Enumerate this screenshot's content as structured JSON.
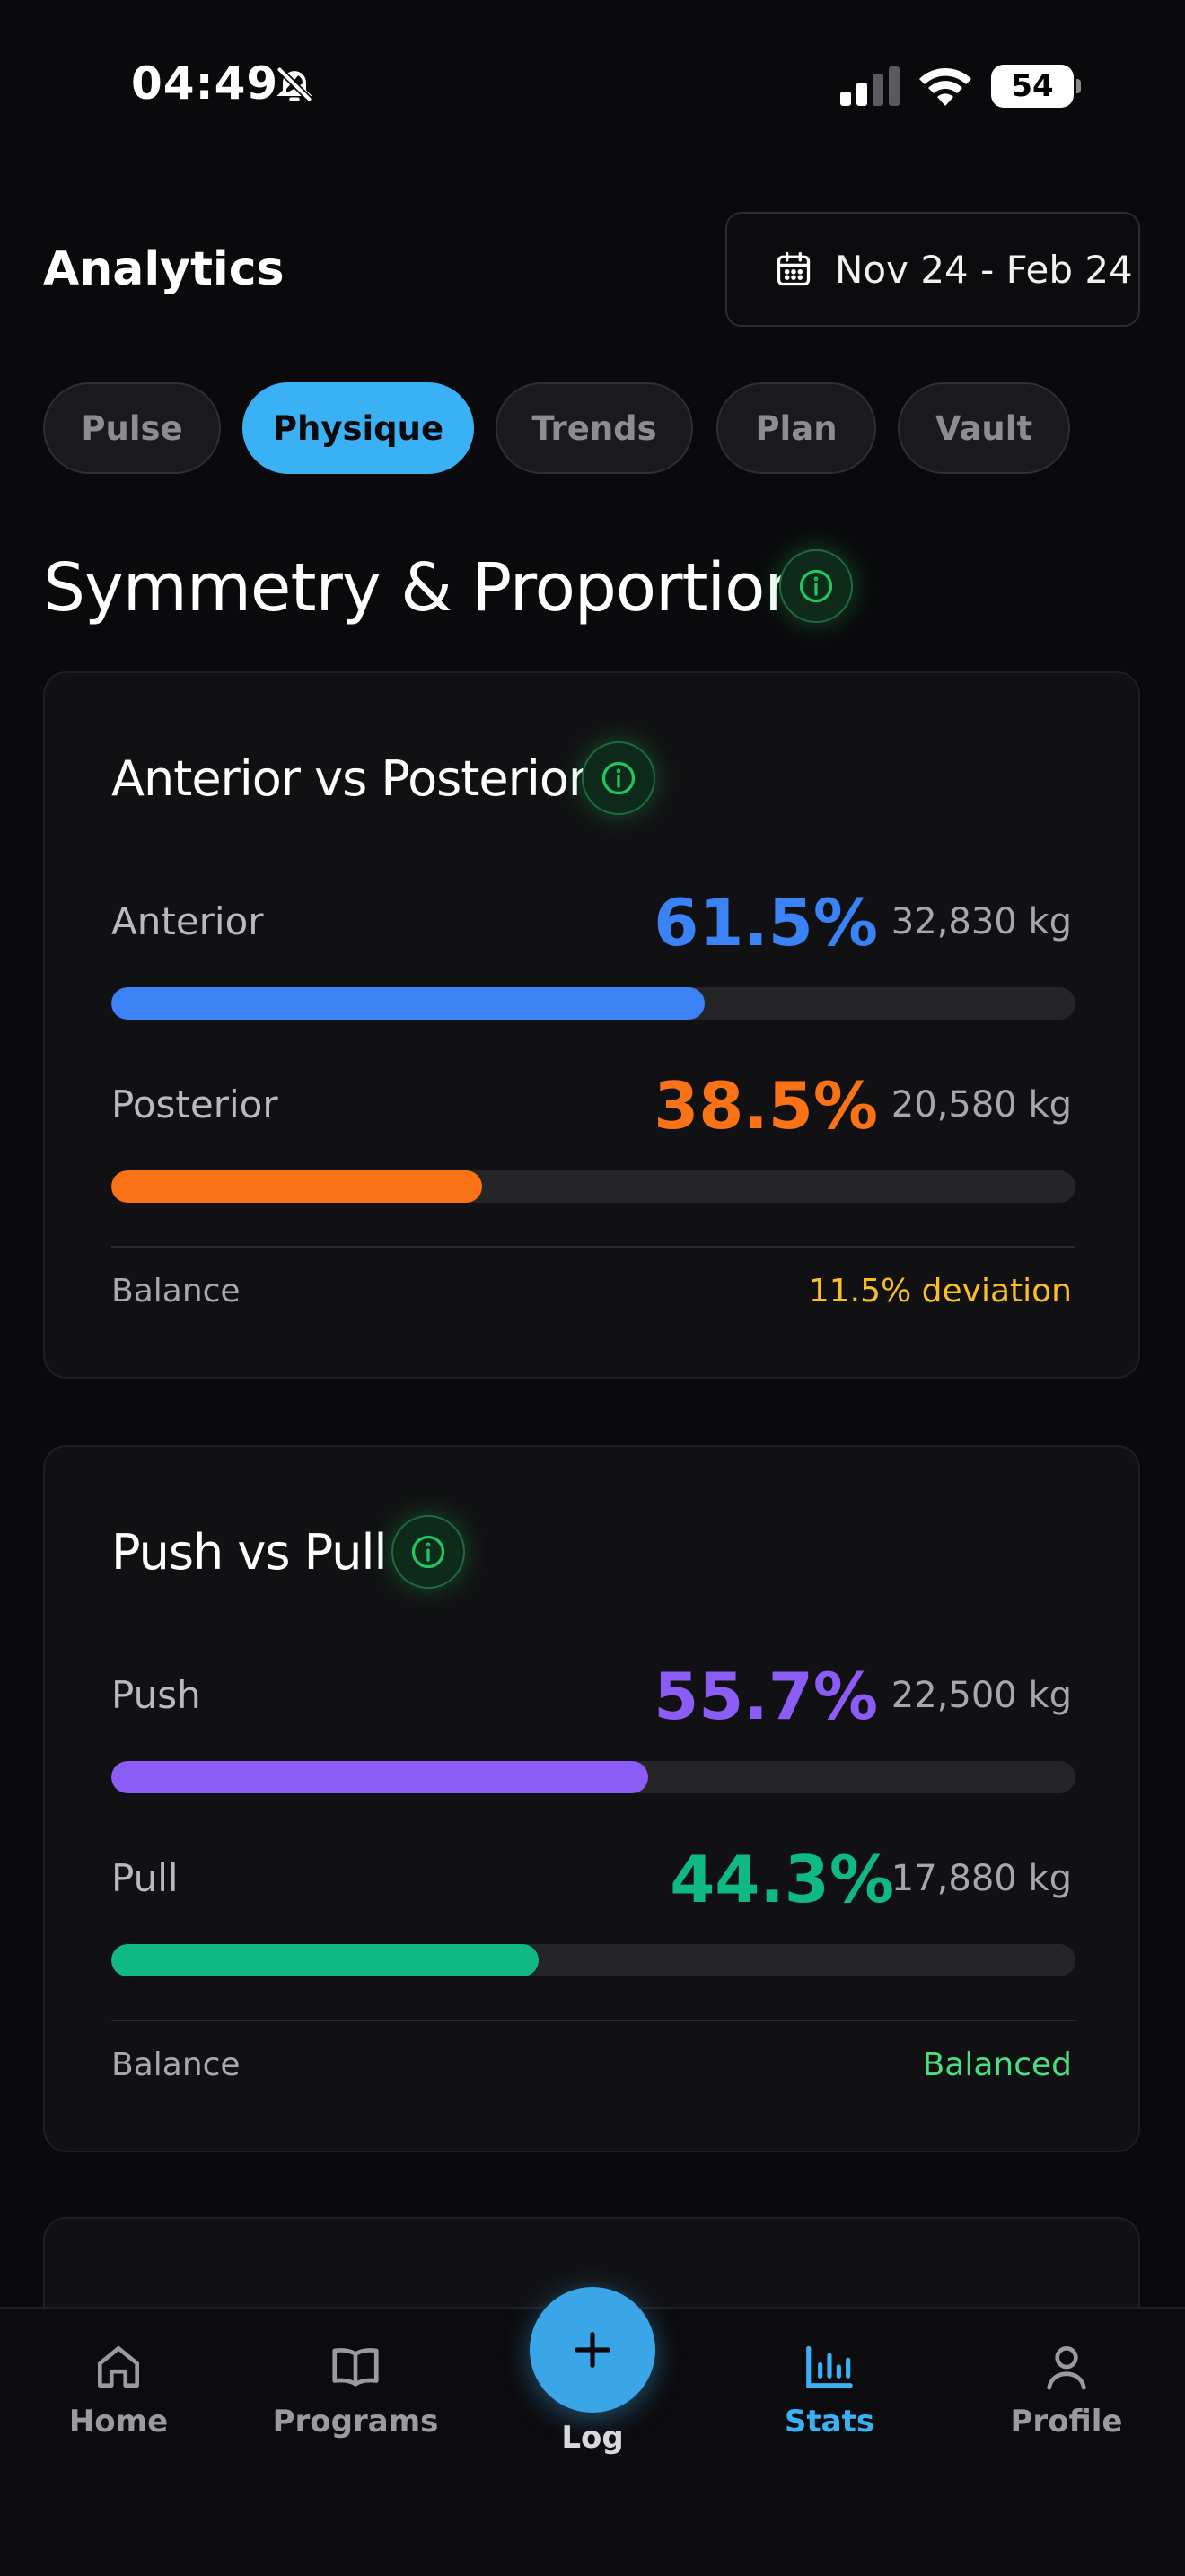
{
  "status_bar": {
    "time": "04:49",
    "battery": "54"
  },
  "header": {
    "title": "Analytics",
    "date_range": "Nov 24 - Feb 24"
  },
  "tabs": [
    {
      "label": "Pulse",
      "active": false
    },
    {
      "label": "Physique",
      "active": true
    },
    {
      "label": "Trends",
      "active": false
    },
    {
      "label": "Plan",
      "active": false
    },
    {
      "label": "Vault",
      "active": false
    }
  ],
  "section": {
    "title": "Symmetry & Proportions"
  },
  "cards": [
    {
      "title": "Anterior vs Posterior",
      "rows": [
        {
          "label": "Anterior",
          "percent_text": "61.5%",
          "percent": 61.5,
          "kg": "32,830 kg",
          "color": "#3b82f6"
        },
        {
          "label": "Posterior",
          "percent_text": "38.5%",
          "percent": 38.5,
          "kg": "20,580 kg",
          "color": "#f97316"
        }
      ],
      "balance_label": "Balance",
      "balance_value": "11.5% deviation",
      "balance_color": "#fbbf24"
    },
    {
      "title": "Push vs Pull",
      "rows": [
        {
          "label": "Push",
          "percent_text": "55.7%",
          "percent": 55.7,
          "kg": "22,500 kg",
          "color": "#8b5cf6"
        },
        {
          "label": "Pull",
          "percent_text": "44.3%",
          "percent": 44.3,
          "kg": "17,880 kg",
          "color": "#10b981"
        }
      ],
      "balance_label": "Balance",
      "balance_value": "Balanced",
      "balance_color": "#4ade80"
    }
  ],
  "bottom_nav": [
    {
      "label": "Home",
      "icon": "home-icon",
      "active": false
    },
    {
      "label": "Programs",
      "icon": "book-icon",
      "active": false
    },
    {
      "label": "Log",
      "icon": "plus-icon",
      "active": false
    },
    {
      "label": "Stats",
      "icon": "bar-chart-icon",
      "active": true
    },
    {
      "label": "Profile",
      "icon": "person-icon",
      "active": false
    }
  ],
  "colors": {
    "accent": "#3ab0f5",
    "info_green": "#22c55e"
  }
}
